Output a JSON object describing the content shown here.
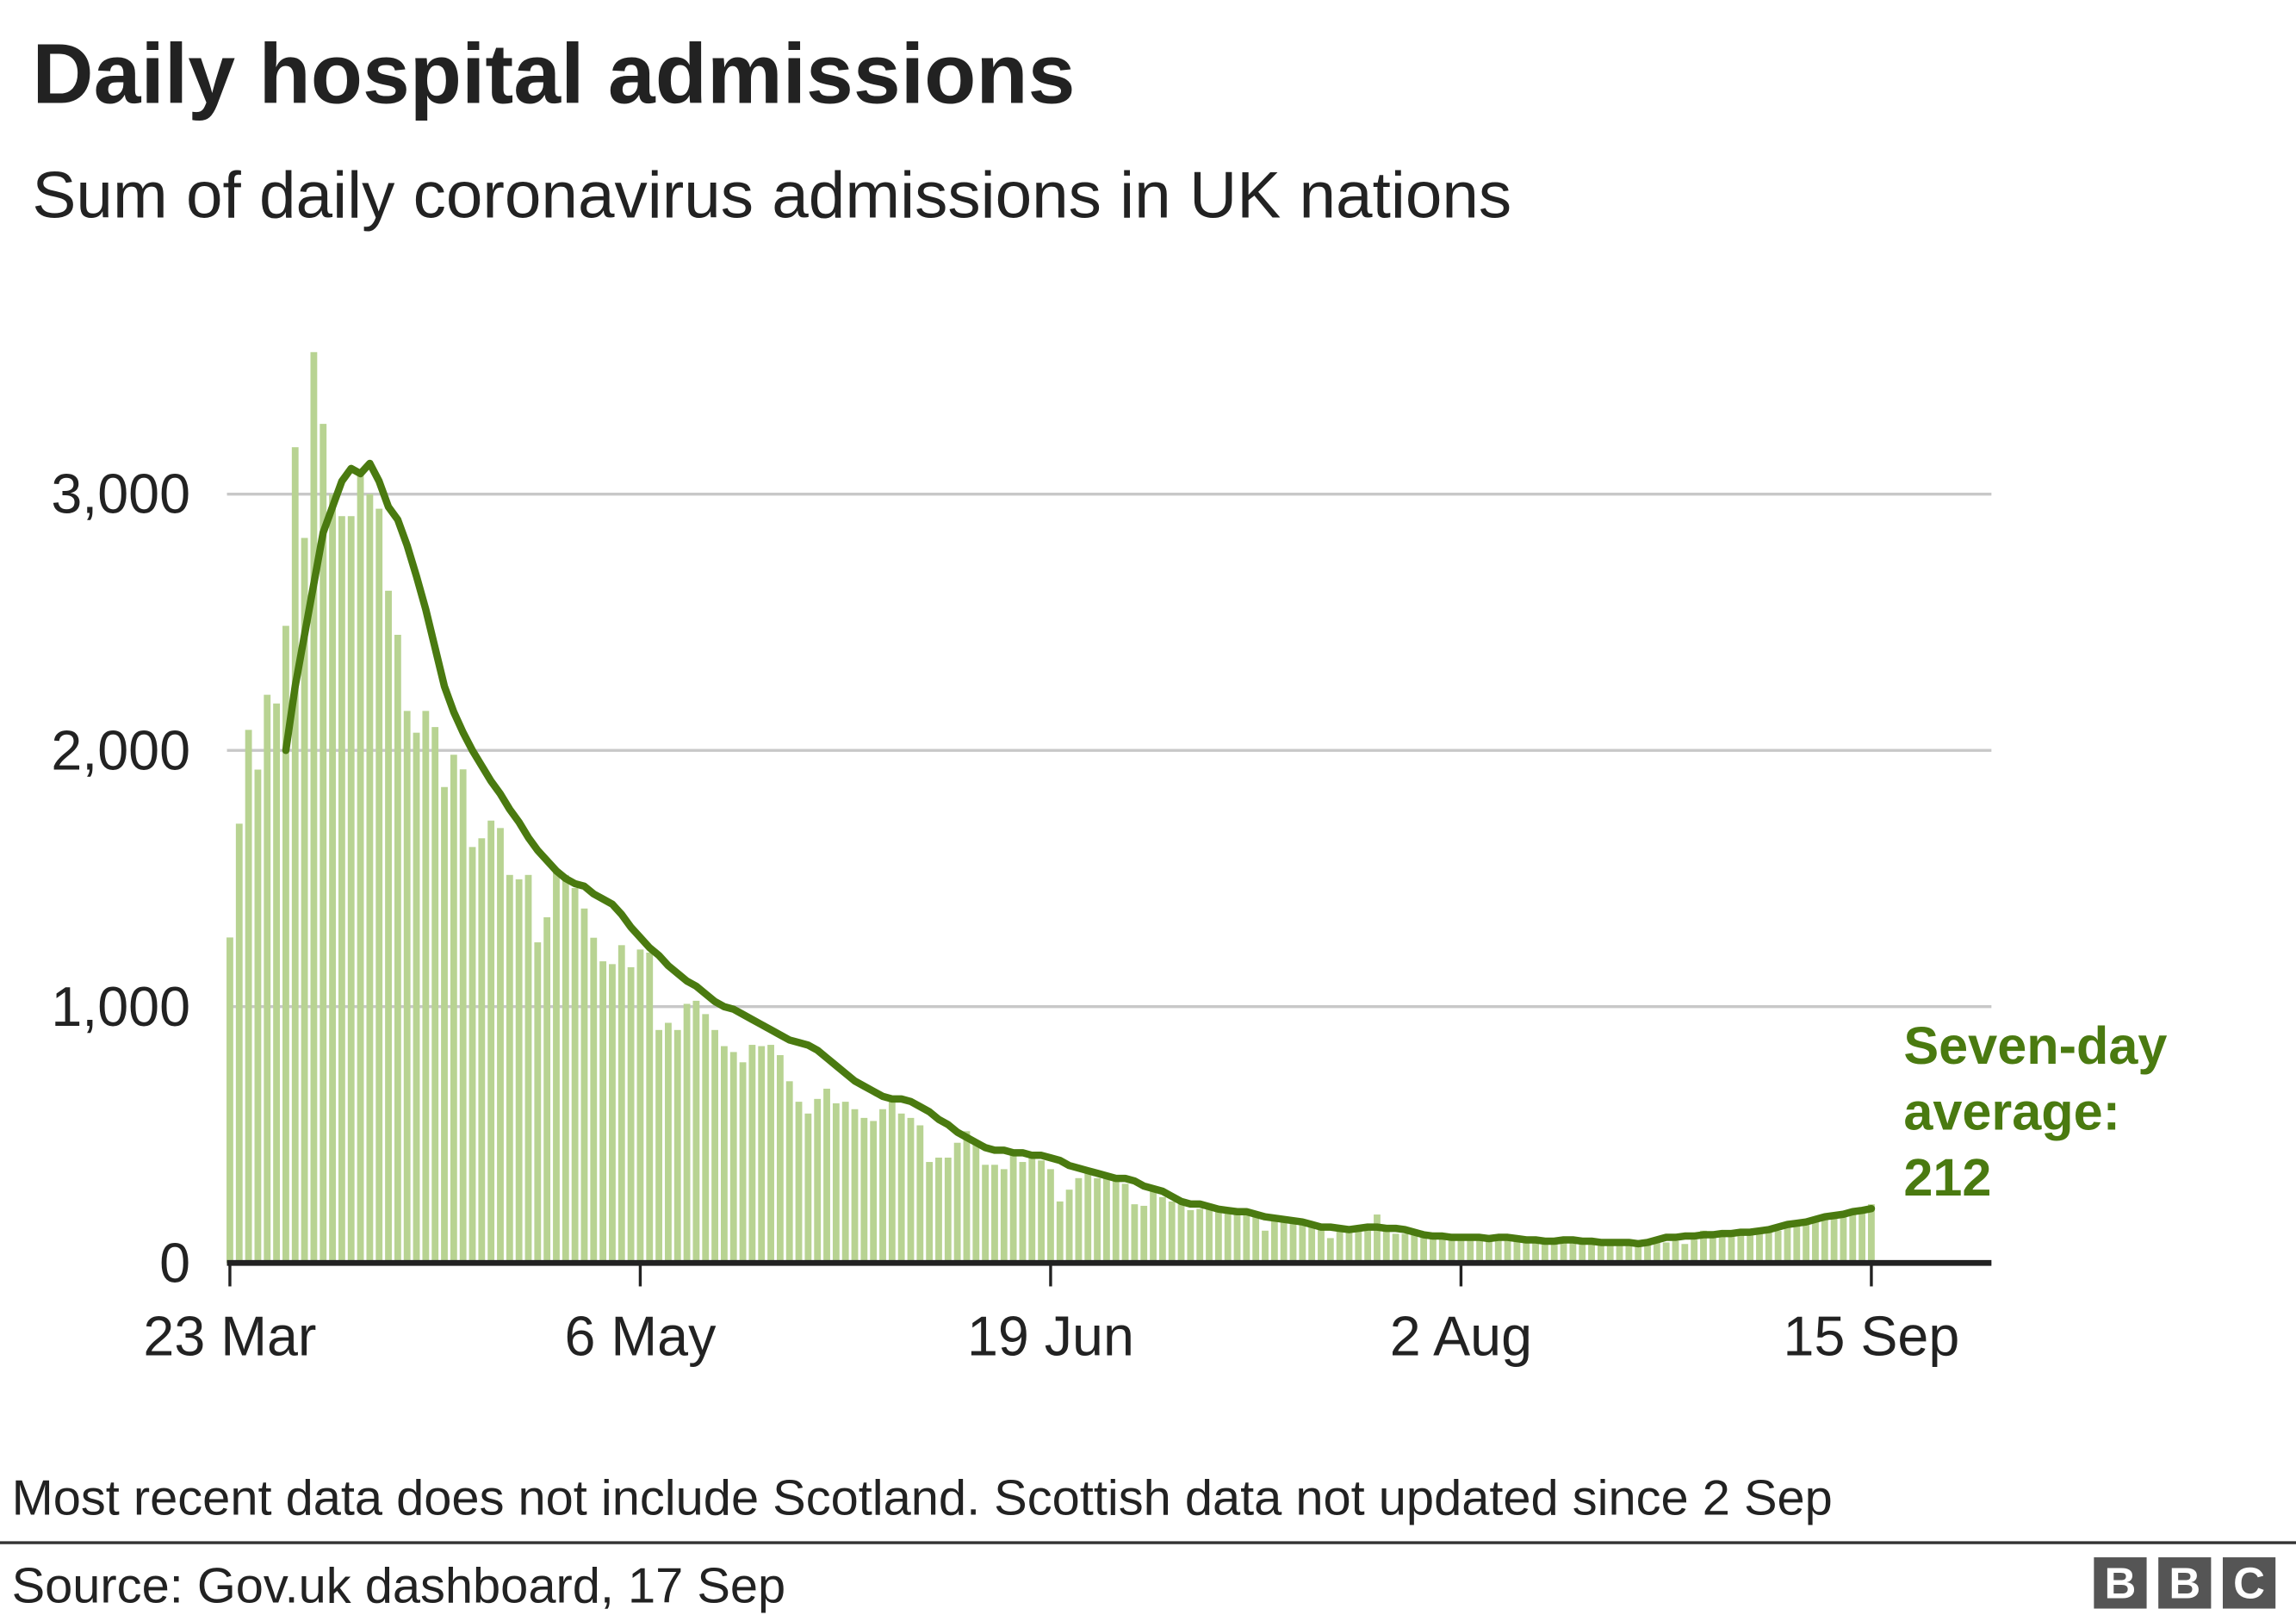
{
  "chart_data": {
    "type": "bar",
    "title": "Daily hospital admissions",
    "subtitle": "Sum of daily coronavirus admissions in UK nations",
    "categories": [
      "23 Mar",
      null,
      null,
      null,
      null,
      null,
      null,
      null,
      null,
      null,
      null,
      null,
      null,
      null,
      null,
      null,
      null,
      null,
      null,
      null,
      null,
      null,
      null,
      null,
      null,
      null,
      null,
      null,
      null,
      null,
      null,
      null,
      null,
      null,
      null,
      null,
      null,
      null,
      null,
      null,
      null,
      null,
      null,
      null,
      "6 May",
      null,
      null,
      null,
      null,
      null,
      null,
      null,
      null,
      null,
      null,
      null,
      null,
      null,
      null,
      null,
      null,
      null,
      null,
      null,
      null,
      null,
      null,
      null,
      null,
      null,
      null,
      null,
      null,
      null,
      null,
      null,
      null,
      null,
      null,
      null,
      null,
      null,
      null,
      null,
      null,
      null,
      null,
      null,
      "19 Jun",
      null,
      null,
      null,
      null,
      null,
      null,
      null,
      null,
      null,
      null,
      null,
      null,
      null,
      null,
      null,
      null,
      null,
      null,
      null,
      null,
      null,
      null,
      null,
      null,
      null,
      null,
      null,
      null,
      null,
      null,
      null,
      null,
      null,
      null,
      null,
      null,
      null,
      null,
      null,
      null,
      null,
      null,
      null,
      "2 Aug",
      null,
      null,
      null,
      null,
      null,
      null,
      null,
      null,
      null,
      null,
      null,
      null,
      null,
      null,
      null,
      null,
      null,
      null,
      null,
      null,
      null,
      null,
      null,
      null,
      null,
      null,
      null,
      null,
      null,
      null,
      null,
      null,
      null,
      null,
      null,
      null,
      null,
      null,
      null,
      null,
      null,
      null,
      null,
      "15 Sep"
    ],
    "series": [
      {
        "type": "bar",
        "color": "#b8d392",
        "values": [
          1270,
          1714,
          2080,
          1925,
          2217,
          2183,
          2486,
          3183,
          2829,
          3554,
          3274,
          3000,
          2914,
          2914,
          3080,
          3000,
          2943,
          2623,
          2451,
          2154,
          2069,
          2154,
          2091,
          1857,
          1983,
          1926,
          1623,
          1657,
          1726,
          1697,
          1514,
          1497,
          1514,
          1251,
          1349,
          1537,
          1514,
          1463,
          1383,
          1269,
          1177,
          1166,
          1240,
          1154,
          1223,
          1211,
          909,
          937,
          909,
          1011,
          1023,
          971,
          909,
          846,
          823,
          783,
          851,
          846,
          851,
          811,
          709,
          629,
          583,
          640,
          680,
          623,
          629,
          600,
          566,
          554,
          600,
          651,
          583,
          566,
          537,
          394,
          411,
          411,
          469,
          514,
          469,
          383,
          383,
          366,
          423,
          394,
          411,
          400,
          366,
          240,
          286,
          331,
          354,
          331,
          343,
          320,
          309,
          229,
          223,
          280,
          257,
          240,
          229,
          206,
          211,
          217,
          200,
          200,
          194,
          200,
          189,
          126,
          171,
          160,
          160,
          154,
          143,
          143,
          97,
          137,
          137,
          126,
          126,
          189,
          126,
          114,
          114,
          109,
          103,
          109,
          97,
          103,
          109,
          97,
          97,
          103,
          91,
          97,
          91,
          91,
          91,
          86,
          86,
          80,
          86,
          80,
          80,
          80,
          80,
          80,
          86,
          80,
          74,
          80,
          80,
          86,
          74,
          91,
          126,
          109,
          109,
          114,
          109,
          114,
          126,
          126,
          126,
          137,
          149,
          154,
          171,
          183,
          183,
          194,
          200,
          206,
          229
        ]
      },
      {
        "type": "line",
        "color": "#4a7a10",
        "values": [
          null,
          null,
          null,
          null,
          null,
          null,
          2000,
          2250,
          2450,
          2650,
          2850,
          2950,
          3050,
          3100,
          3080,
          3120,
          3050,
          2950,
          2900,
          2800,
          2680,
          2550,
          2400,
          2250,
          2150,
          2070,
          2000,
          1940,
          1880,
          1830,
          1770,
          1720,
          1660,
          1610,
          1570,
          1530,
          1500,
          1480,
          1470,
          1440,
          1420,
          1400,
          1360,
          1310,
          1270,
          1230,
          1200,
          1160,
          1130,
          1100,
          1080,
          1050,
          1020,
          1000,
          990,
          970,
          950,
          930,
          910,
          890,
          870,
          860,
          850,
          830,
          800,
          770,
          740,
          710,
          690,
          670,
          650,
          640,
          640,
          630,
          610,
          590,
          560,
          540,
          510,
          490,
          470,
          450,
          440,
          440,
          430,
          430,
          420,
          420,
          410,
          400,
          380,
          370,
          360,
          350,
          340,
          330,
          330,
          320,
          300,
          290,
          280,
          260,
          240,
          230,
          230,
          220,
          210,
          205,
          200,
          200,
          190,
          180,
          175,
          170,
          165,
          160,
          150,
          140,
          140,
          135,
          130,
          135,
          140,
          140,
          135,
          135,
          130,
          120,
          110,
          105,
          105,
          100,
          100,
          100,
          100,
          95,
          100,
          100,
          95,
          90,
          90,
          85,
          85,
          90,
          90,
          85,
          85,
          80,
          80,
          80,
          80,
          75,
          80,
          90,
          100,
          100,
          105,
          105,
          110,
          110,
          115,
          115,
          120,
          120,
          125,
          130,
          140,
          150,
          155,
          160,
          170,
          180,
          185,
          190,
          200,
          205,
          212
        ]
      }
    ],
    "ylim": [
      0,
      3600
    ],
    "yticks": [
      0,
      {
        "value": 1000,
        "label": "1,000"
      },
      {
        "value": 2000,
        "label": "2,000"
      },
      {
        "value": 3000,
        "label": "3,000"
      }
    ],
    "grid": true,
    "annotation": [
      "Seven-day",
      "average:"
    ],
    "note": "Most recent data does not include Scotland. Scottish data not updated since 2 Sep",
    "source": "Source: Gov.uk dashboard, 17 Sep",
    "logo": [
      "B",
      "B",
      "C"
    ]
  }
}
